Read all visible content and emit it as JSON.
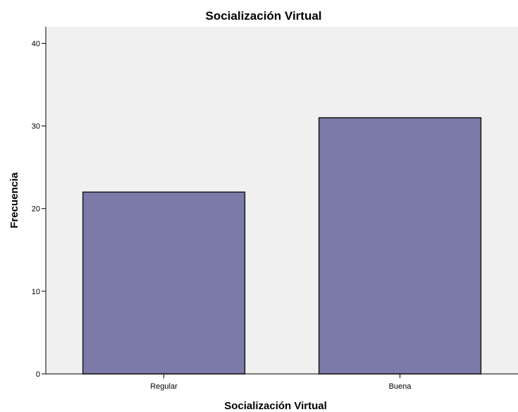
{
  "chart_data": {
    "type": "bar",
    "title": "Socialización Virtual",
    "xlabel": "Socialización Virtual",
    "ylabel": "Frecuencia",
    "categories": [
      "Regular",
      "Buena"
    ],
    "values": [
      22,
      31
    ],
    "ylim": [
      0,
      42
    ],
    "yticks": [
      0,
      10,
      20,
      30,
      40
    ],
    "grid": false,
    "legend": "none",
    "colors": {
      "bar": "#7b7aa8",
      "bar_edge": "#1a1a1a",
      "plot_background": "#f0f0f0",
      "axis": "#000000"
    }
  }
}
